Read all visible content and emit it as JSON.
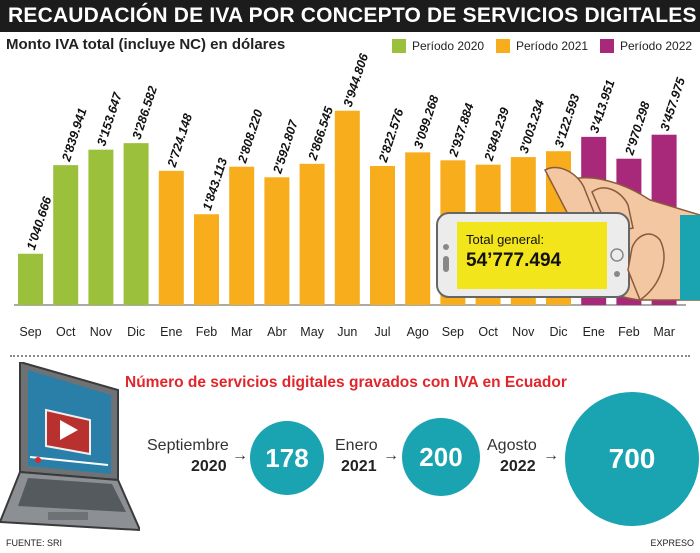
{
  "title": "RECAUDACIÓN DE IVA POR CONCEPTO DE SERVICIOS DIGITALES",
  "colors": {
    "p2020": "#9bc13c",
    "p2021": "#f7ad1c",
    "p2022": "#a8287a",
    "circle": "#1aa3b1",
    "red_title": "#e1262b"
  },
  "chart_data": {
    "type": "bar",
    "title": "RECAUDACIÓN DE IVA POR CONCEPTO DE SERVICIOS DIGITALES",
    "subtitle": "Monto IVA total (incluye NC) en dólares",
    "xlabel": "",
    "ylabel": "",
    "ylim": [
      0,
      4000000
    ],
    "grid": false,
    "legend": [
      {
        "label": "Período 2020",
        "series": "p2020"
      },
      {
        "label": "Período 2021",
        "series": "p2021"
      },
      {
        "label": "Período 2022",
        "series": "p2022"
      }
    ],
    "categories": [
      "Sep",
      "Oct",
      "Nov",
      "Dic",
      "Ene",
      "Feb",
      "Mar",
      "Abr",
      "May",
      "Jun",
      "Jul",
      "Ago",
      "Sep",
      "Oct",
      "Nov",
      "Dic",
      "Ene",
      "Feb",
      "Mar"
    ],
    "values": [
      1040666,
      2839941,
      3153647,
      3286582,
      2724148,
      1843113,
      2808220,
      2592807,
      2866545,
      3944806,
      2822576,
      3099268,
      2937884,
      2849239,
      3003234,
      3122593,
      3413951,
      2970298,
      3457975
    ],
    "labels": [
      "1'040.666",
      "2'839.941",
      "3'153.647",
      "3'286.582",
      "2'724.148",
      "1'843.113",
      "2'808.220",
      "2'592.807",
      "2'866.545",
      "3'944.806",
      "2'822.576",
      "3'099.268",
      "2'937.884",
      "2'849.239",
      "3'003.234",
      "3'122.593",
      "3'413.951",
      "2'970.298",
      "3'457.975"
    ],
    "periods": [
      "p2020",
      "p2020",
      "p2020",
      "p2020",
      "p2021",
      "p2021",
      "p2021",
      "p2021",
      "p2021",
      "p2021",
      "p2021",
      "p2021",
      "p2021",
      "p2021",
      "p2021",
      "p2021",
      "p2022",
      "p2022",
      "p2022"
    ],
    "total_label": "Total general:",
    "total_value": "54’777.494"
  },
  "services": {
    "title": "Número de servicios digitales gravados con IVA en Ecuador",
    "items": [
      {
        "month": "Septiembre",
        "year": "2020",
        "count": "178"
      },
      {
        "month": "Enero",
        "year": "2021",
        "count": "200"
      },
      {
        "month": "Agosto",
        "year": "2022",
        "count": "700"
      }
    ]
  },
  "footer": {
    "source": "FUENTE: SRI",
    "brand": "EXPRESO"
  }
}
